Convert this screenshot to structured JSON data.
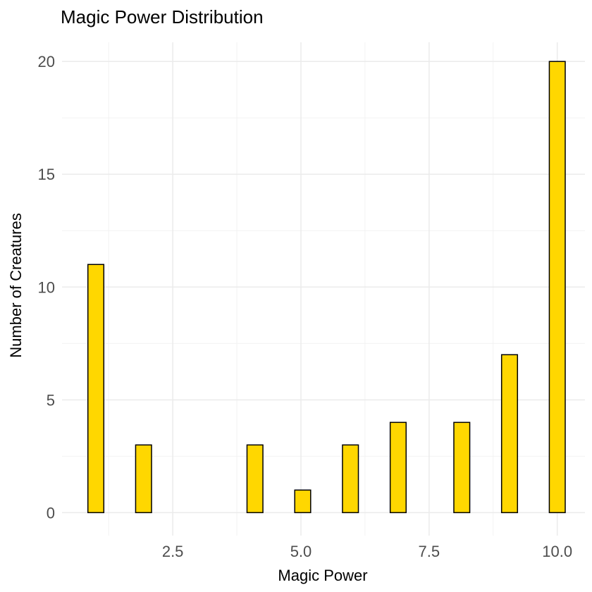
{
  "chart_data": {
    "type": "bar",
    "subtype": "histogram",
    "title": "Magic Power Distribution",
    "xlabel": "Magic Power",
    "ylabel": "Number of Creatures",
    "bins": 30,
    "x_range_data": [
      1,
      10
    ],
    "bin_centers_integers": [
      1,
      2,
      3,
      4,
      5,
      6,
      7,
      8,
      9,
      10
    ],
    "integer_counts": [
      11,
      3,
      0,
      3,
      1,
      3,
      4,
      4,
      7,
      20
    ],
    "xlim": [
      0.34,
      10.54
    ],
    "ylim": [
      -1.02,
      20.85
    ],
    "xticks": [
      2.5,
      5.0,
      7.5,
      10.0
    ],
    "xtick_labels": [
      "2.5",
      "5.0",
      "7.5",
      "10.0"
    ],
    "yticks": [
      0,
      5,
      10,
      15,
      20
    ],
    "ytick_labels": [
      "0",
      "5",
      "10",
      "15",
      "20"
    ],
    "grid": true,
    "fill_color": "#FFD700",
    "outline_color": "#000000"
  }
}
